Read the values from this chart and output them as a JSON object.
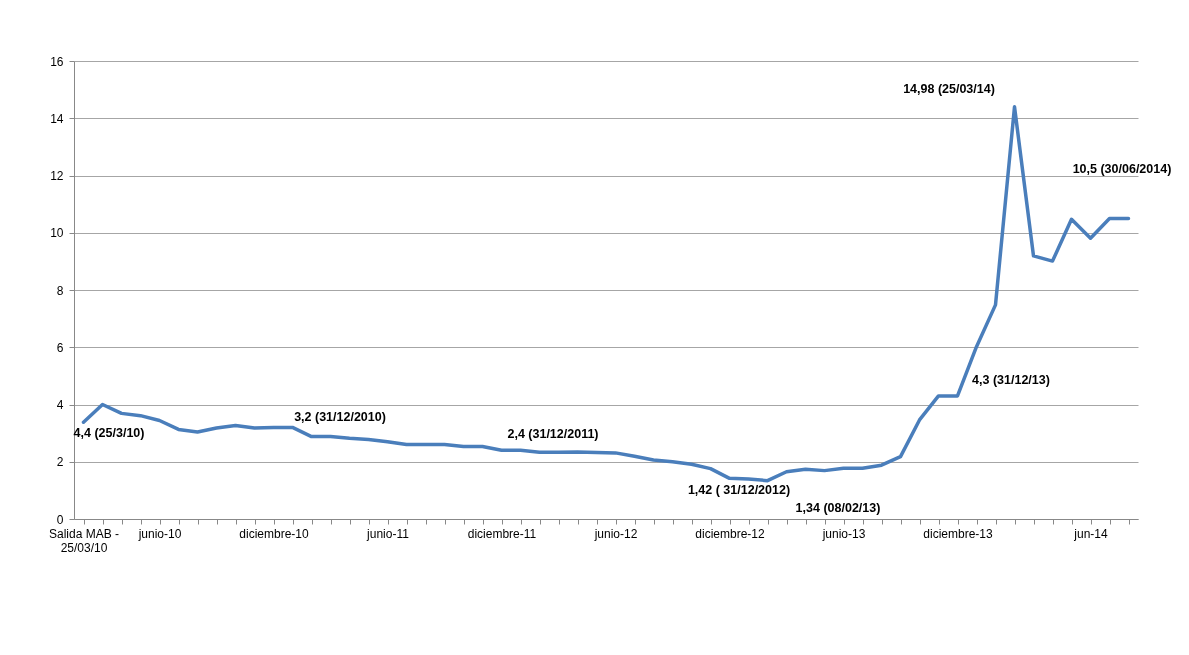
{
  "chart_data": {
    "type": "line",
    "categories": [
      "Salida MAB - 25/03/10",
      null,
      null,
      null,
      "junio-10",
      null,
      null,
      null,
      null,
      null,
      "diciembre-10",
      null,
      null,
      null,
      null,
      null,
      "junio-11",
      null,
      null,
      null,
      null,
      null,
      "diciembre-11",
      null,
      null,
      null,
      null,
      null,
      "junio-12",
      null,
      null,
      null,
      null,
      null,
      "diciembre-12",
      null,
      null,
      null,
      null,
      null,
      "junio-13",
      null,
      null,
      null,
      null,
      null,
      "diciembre-13",
      null,
      null,
      null,
      null,
      null,
      null,
      "jun-14",
      null,
      null
    ],
    "series": [
      {
        "color": "#4a7ebb",
        "values": [
          3.38,
          4.0,
          3.69,
          3.61,
          3.44,
          3.13,
          3.04,
          3.18,
          3.27,
          3.18,
          3.2,
          3.2,
          2.88,
          2.88,
          2.82,
          2.78,
          2.7,
          2.6,
          2.6,
          2.6,
          2.53,
          2.53,
          2.4,
          2.4,
          2.33,
          2.33,
          2.34,
          2.32,
          2.31,
          2.19,
          2.06,
          2.0,
          1.91,
          1.76,
          1.42,
          1.4,
          1.34,
          1.65,
          1.74,
          1.69,
          1.77,
          1.77,
          1.88,
          2.18,
          3.46,
          4.3,
          4.3,
          6.02,
          7.48,
          14.4,
          9.19,
          9.01,
          10.47,
          9.81,
          10.5,
          10.5
        ]
      }
    ],
    "ylim": [
      0,
      16
    ],
    "yticks": [
      0,
      2,
      4,
      6,
      8,
      10,
      12,
      14,
      16
    ],
    "grid": "y",
    "annotations": [
      "4,4 (25/3/10)",
      "3,2 (31/12/2010)",
      "2,4 (31/12/2011)",
      "1,42 ( 31/12/2012)",
      "1,34 (08/02/13)",
      "14,98 (25/03/14)",
      "10,5 (30/06/2014)",
      "4,3 (31/12/13)"
    ]
  }
}
